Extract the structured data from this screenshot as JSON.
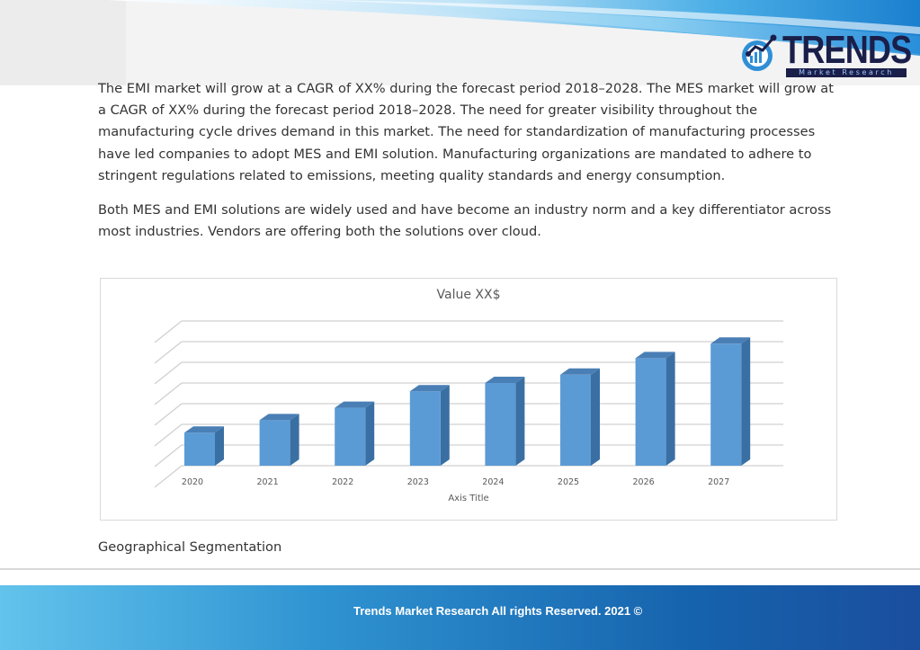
{
  "brand": {
    "logo_text": "TRENDS",
    "logo_subtext": "Market Research",
    "colors": {
      "navy": "#1a1f4a",
      "accent_blue": "#2f8fd6",
      "bar": "#5b9bd5"
    }
  },
  "body": {
    "paragraph1": "The EMI market will grow at a CAGR of XX% during the forecast period 2018–2028. The MES market will grow at a CAGR of XX% during the forecast period 2018–2028. The need for greater visibility throughout the manufacturing cycle drives demand in this market. The need for standardization of manufacturing processes have led companies to adopt MES and EMI solution. Manufacturing organizations are mandated to adhere to stringent regulations related to emissions, meeting quality standards and energy consumption.",
    "paragraph2": "Both MES and EMI solutions are widely used and have become an industry norm and a key differentiator across most industries. Vendors are offering both the solutions over cloud.",
    "section_heading": "Geographical Segmentation"
  },
  "chart_data": {
    "type": "bar",
    "title": "Value XX$",
    "xlabel": "Axis Title",
    "ylabel": "",
    "categories": [
      "2020",
      "2021",
      "2022",
      "2023",
      "2024",
      "2025",
      "2026",
      "2027"
    ],
    "values": [
      1.6,
      2.2,
      2.8,
      3.6,
      4.0,
      4.4,
      5.2,
      5.9
    ],
    "ylim": [
      0,
      7
    ],
    "three_d": true,
    "grid": true,
    "legend": "none"
  },
  "footer": {
    "copyright": "Trends Market Research All rights Reserved. 2021 ©"
  }
}
